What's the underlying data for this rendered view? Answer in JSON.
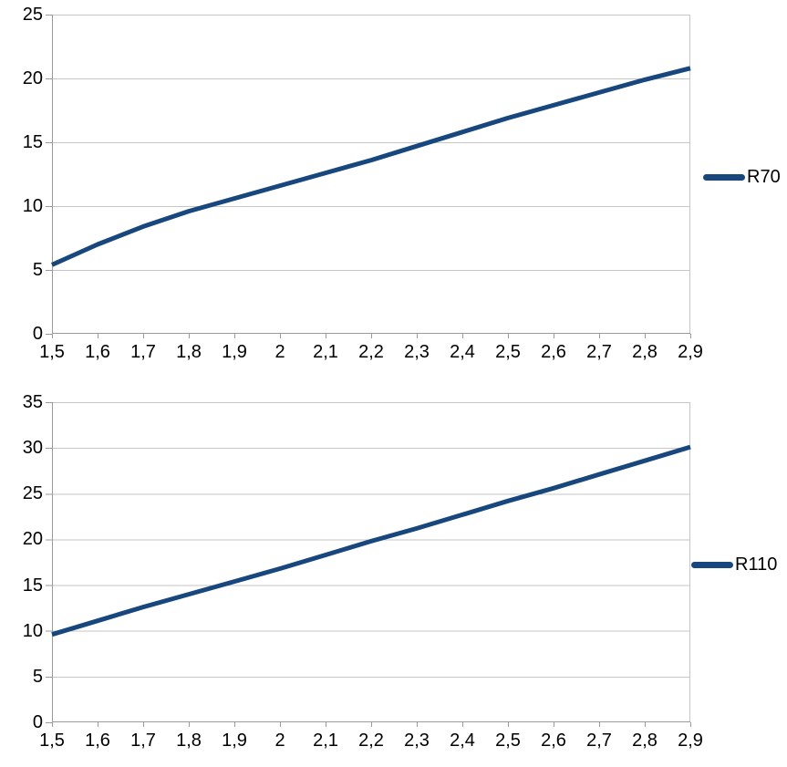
{
  "page": {
    "background": "#ffffff"
  },
  "colors": {
    "series_line": "#17477d",
    "gridline": "#c6c6c6",
    "axis": "#9b9b9b",
    "text": "#000000"
  },
  "chart_data": [
    {
      "type": "line",
      "title": "",
      "xlabel": "",
      "ylabel": "",
      "categories": [
        "1,5",
        "1,6",
        "1,7",
        "1,8",
        "1,9",
        "2",
        "2,1",
        "2,2",
        "2,3",
        "2,4",
        "2,5",
        "2,6",
        "2,7",
        "2,8",
        "2,9"
      ],
      "x_values": [
        1.5,
        1.6,
        1.7,
        1.8,
        1.9,
        2.0,
        2.1,
        2.2,
        2.3,
        2.4,
        2.5,
        2.6,
        2.7,
        2.8,
        2.9
      ],
      "series": [
        {
          "name": "R70",
          "color": "#17477d",
          "values": [
            5.4,
            7.0,
            8.4,
            9.6,
            10.6,
            11.6,
            12.6,
            13.6,
            14.7,
            15.8,
            16.9,
            17.9,
            18.9,
            19.9,
            20.8
          ]
        }
      ],
      "ylim": [
        0,
        25
      ],
      "ytick_step": 5,
      "y_ticks": [
        "0",
        "5",
        "10",
        "15",
        "20",
        "25"
      ],
      "grid": "horizontal",
      "legend_position": "right",
      "decimal_separator": "comma"
    },
    {
      "type": "line",
      "title": "",
      "xlabel": "",
      "ylabel": "",
      "categories": [
        "1,5",
        "1,6",
        "1,7",
        "1,8",
        "1,9",
        "2",
        "2,1",
        "2,2",
        "2,3",
        "2,4",
        "2,5",
        "2,6",
        "2,7",
        "2,8",
        "2,9"
      ],
      "x_values": [
        1.5,
        1.6,
        1.7,
        1.8,
        1.9,
        2.0,
        2.1,
        2.2,
        2.3,
        2.4,
        2.5,
        2.6,
        2.7,
        2.8,
        2.9
      ],
      "series": [
        {
          "name": "R110",
          "color": "#17477d",
          "values": [
            9.6,
            11.1,
            12.6,
            14.0,
            15.4,
            16.8,
            18.3,
            19.8,
            21.2,
            22.7,
            24.2,
            25.6,
            27.1,
            28.6,
            30.1
          ]
        }
      ],
      "ylim": [
        0,
        35
      ],
      "ytick_step": 5,
      "y_ticks": [
        "0",
        "5",
        "10",
        "15",
        "20",
        "25",
        "30",
        "35"
      ],
      "grid": "horizontal",
      "legend_position": "right",
      "decimal_separator": "comma"
    }
  ]
}
